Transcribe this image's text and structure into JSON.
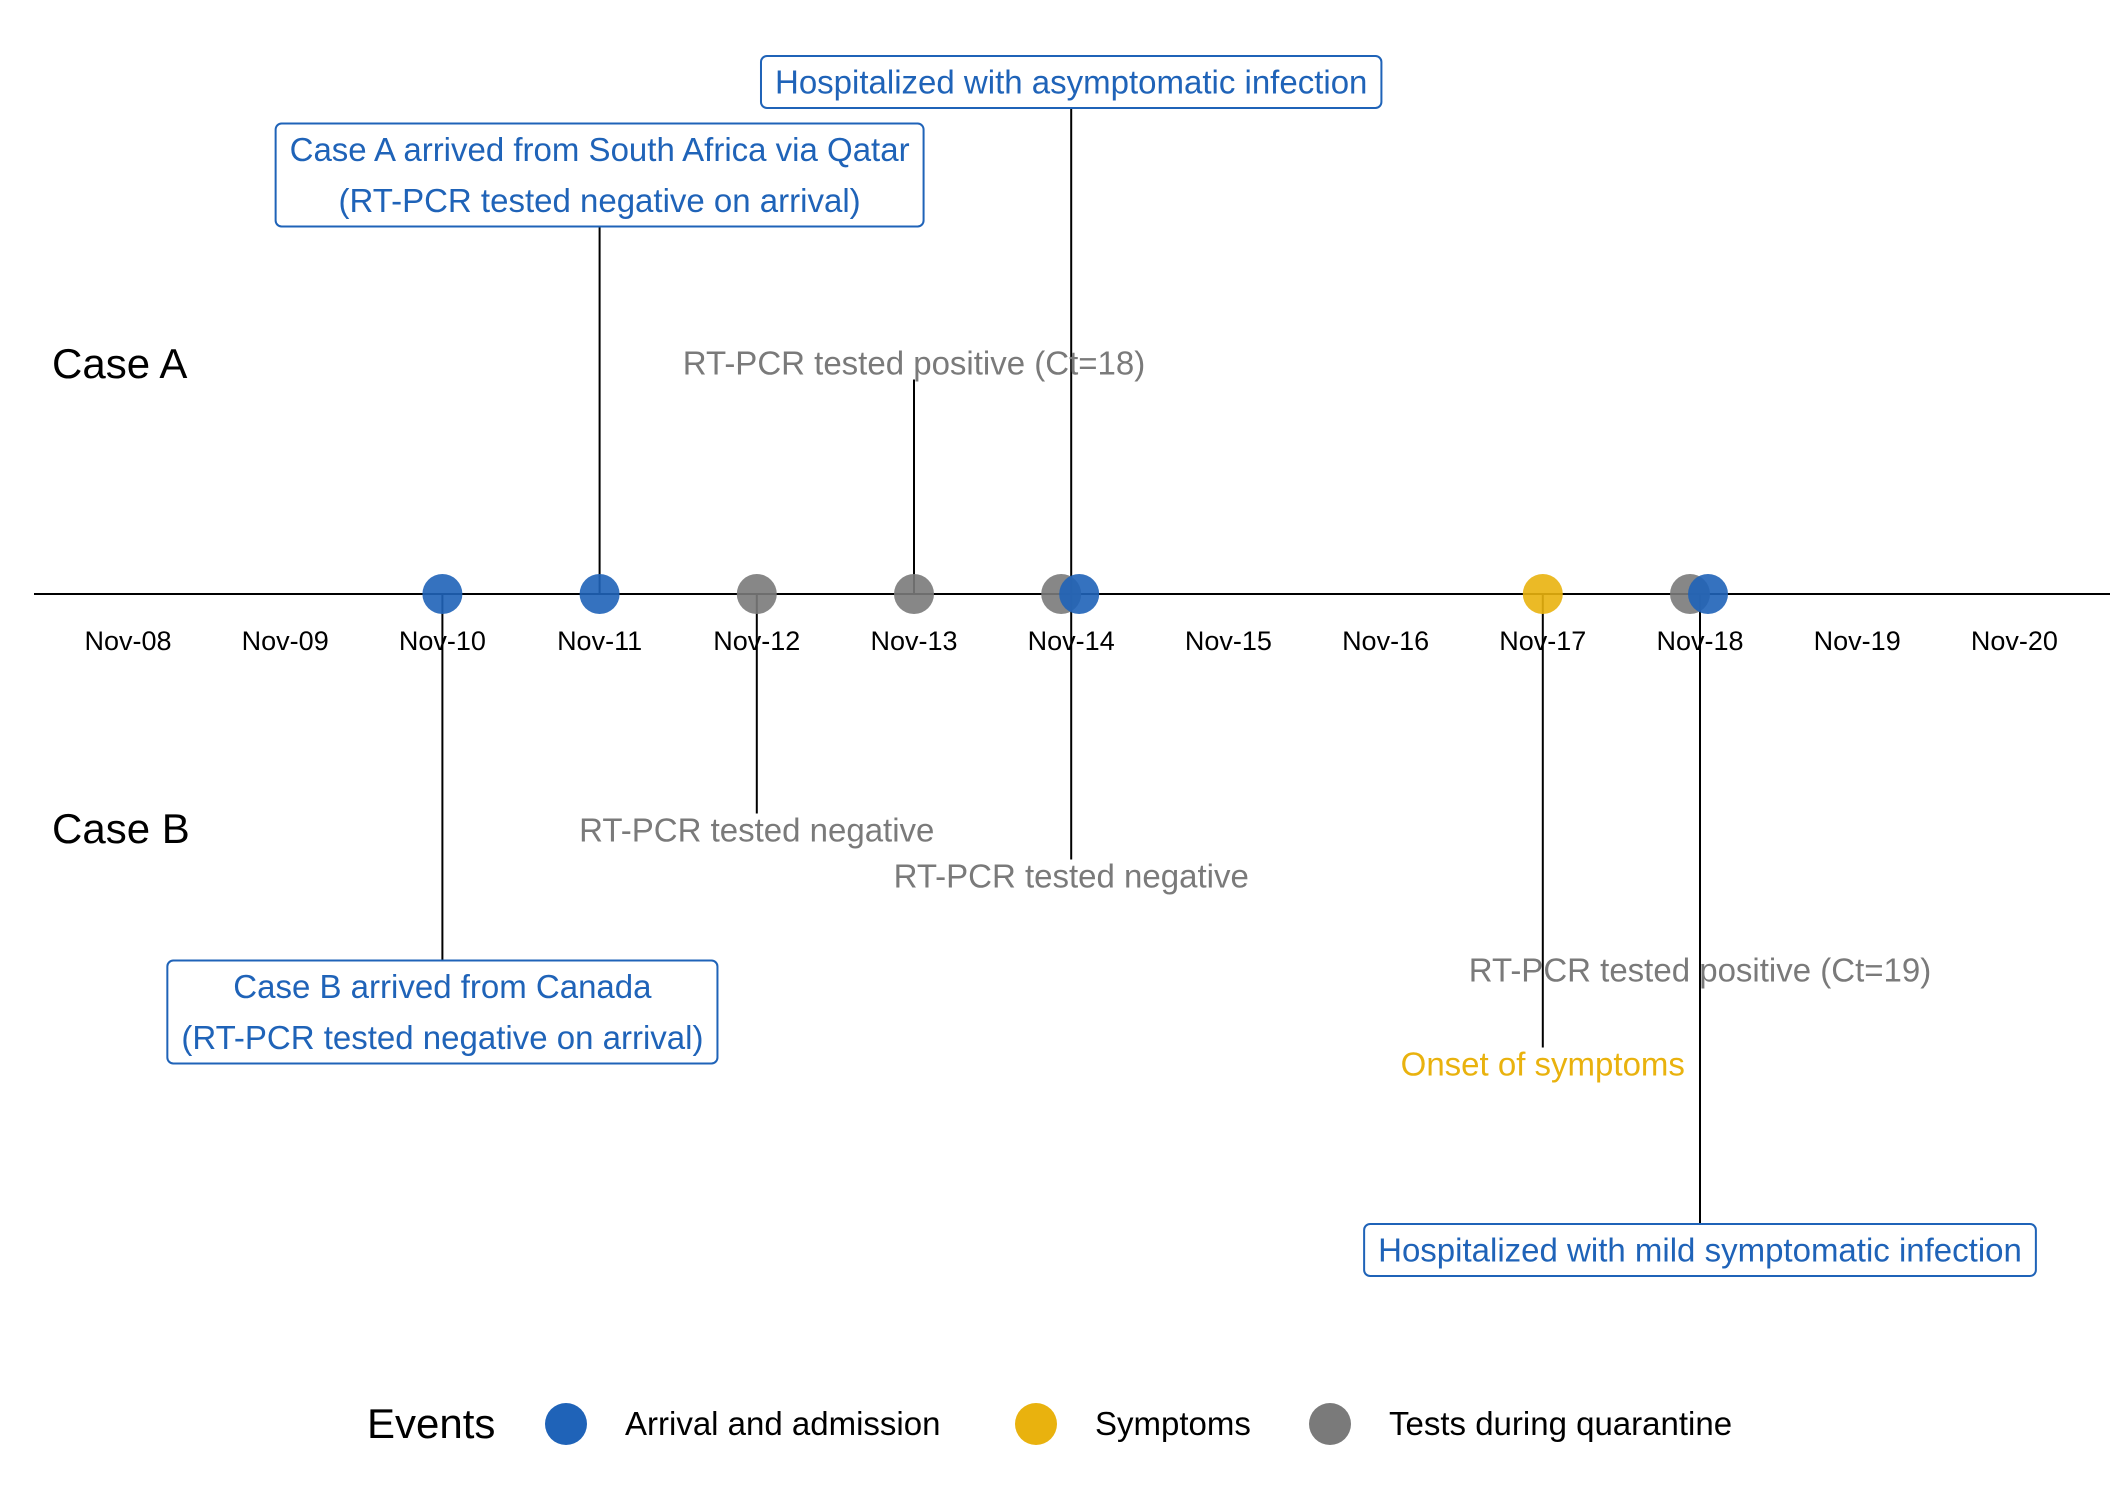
{
  "colors": {
    "arrival": "#1F63B8",
    "symptoms": "#E9B20E",
    "tests": "#7A7A7A",
    "axis": "#000000"
  },
  "row_labels": {
    "case_a": "Case A",
    "case_b": "Case B"
  },
  "dates": [
    "Nov-08",
    "Nov-09",
    "Nov-10",
    "Nov-11",
    "Nov-12",
    "Nov-13",
    "Nov-14",
    "Nov-15",
    "Nov-16",
    "Nov-17",
    "Nov-18",
    "Nov-19",
    "Nov-20"
  ],
  "events": [
    {
      "id": "b-arrival",
      "case": "B",
      "date": "Nov-10",
      "category": "arrival",
      "lines": [
        "Case B arrived from Canada",
        "(RT-PCR tested negative on arrival)"
      ],
      "boxed": true
    },
    {
      "id": "a-arrival",
      "case": "A",
      "date": "Nov-11",
      "category": "arrival",
      "lines": [
        "Case A arrived from South Africa via Qatar",
        "(RT-PCR tested negative on arrival)"
      ],
      "boxed": true
    },
    {
      "id": "b-test-1",
      "case": "B",
      "date": "Nov-12",
      "category": "tests",
      "lines": [
        "RT-PCR tested negative"
      ],
      "boxed": false
    },
    {
      "id": "a-test-positive",
      "case": "A",
      "date": "Nov-13",
      "category": "tests",
      "lines": [
        "RT-PCR tested positive (Ct=18)"
      ],
      "boxed": false
    },
    {
      "id": "b-test-2",
      "case": "B",
      "date": "Nov-14",
      "category": "tests",
      "lines": [
        "RT-PCR tested negative"
      ],
      "boxed": false
    },
    {
      "id": "a-hospitalized",
      "case": "A",
      "date": "Nov-14",
      "category": "arrival",
      "lines": [
        "Hospitalized with asymptomatic infection"
      ],
      "boxed": true
    },
    {
      "id": "b-symptoms",
      "case": "B",
      "date": "Nov-17",
      "category": "symptoms",
      "lines": [
        "Onset of symptoms"
      ],
      "boxed": false
    },
    {
      "id": "b-test-positive",
      "case": "B",
      "date": "Nov-18",
      "category": "tests",
      "lines": [
        "RT-PCR tested positive (Ct=19)"
      ],
      "boxed": false
    },
    {
      "id": "b-hospitalized",
      "case": "B",
      "date": "Nov-18",
      "category": "arrival",
      "lines": [
        "Hospitalized with mild symptomatic infection"
      ],
      "boxed": true
    }
  ],
  "legend": {
    "title": "Events",
    "items": [
      {
        "key": "arrival",
        "label": "Arrival and admission"
      },
      {
        "key": "symptoms",
        "label": "Symptoms"
      },
      {
        "key": "tests",
        "label": "Tests during quarantine"
      }
    ]
  }
}
